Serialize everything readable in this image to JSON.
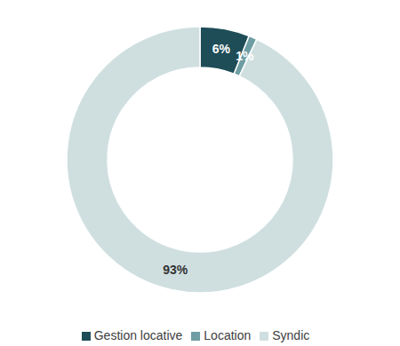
{
  "chart_data": {
    "type": "pie",
    "categories": [
      "Gestion locative",
      "Location",
      "Syndic"
    ],
    "values": [
      6,
      1,
      93
    ],
    "value_labels": [
      "6%",
      "1%",
      "93%"
    ],
    "colors": [
      "#1e4d58",
      "#6e9ea3",
      "#cfdfe0"
    ],
    "data_labels": true,
    "legend": "bottom"
  }
}
